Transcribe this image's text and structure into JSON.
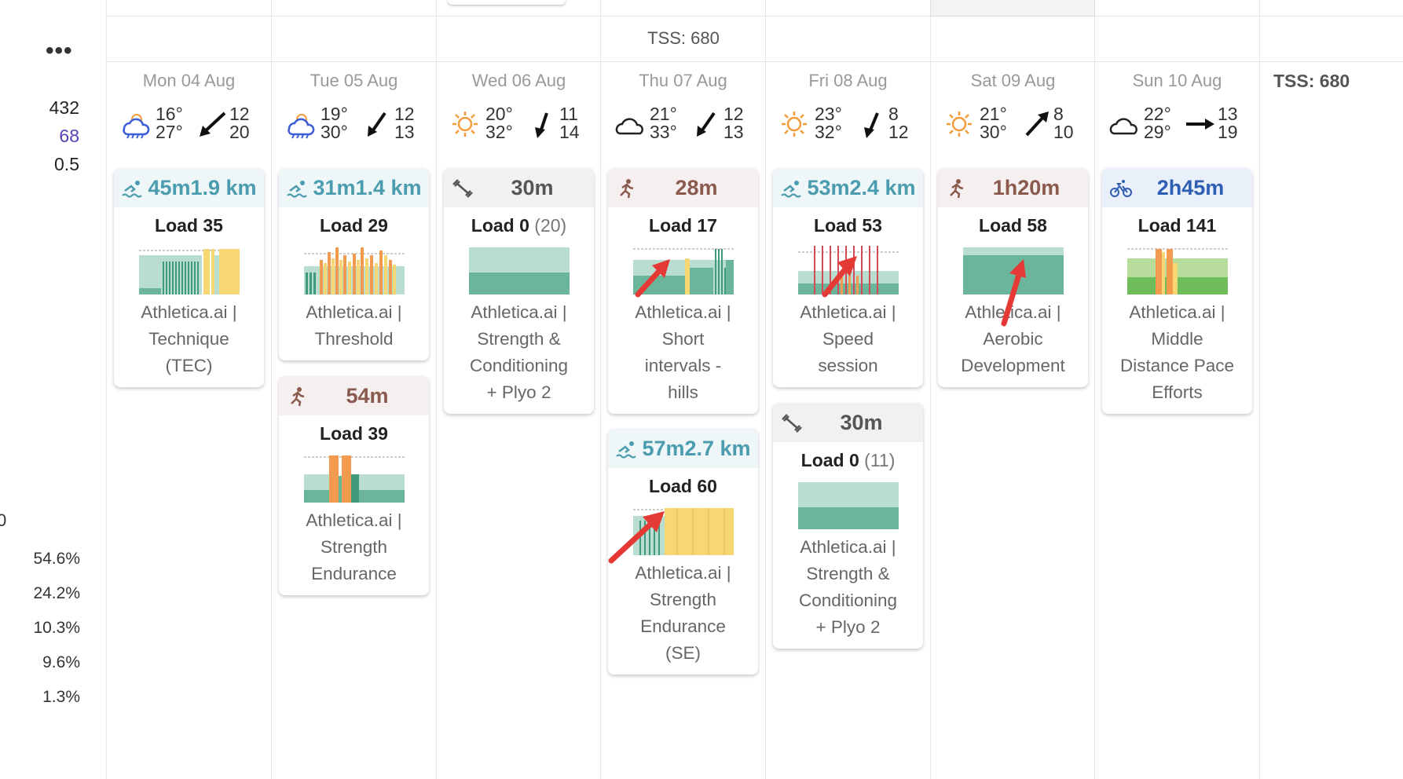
{
  "summary": {
    "tss_top": "TSS: 680",
    "tss_right": "TSS: 680",
    "more_label": "•••",
    "stats": [
      {
        "value": "432",
        "color": "#222222"
      },
      {
        "value": "68",
        "color": "#5b3fb5"
      },
      {
        "value": "0.5",
        "color": "#222222"
      }
    ],
    "cut_value": "0",
    "percentages": [
      "54.6%",
      "24.2%",
      "10.3%",
      "9.6%",
      "1.3%"
    ]
  },
  "days": [
    {
      "label": "Mon 04 Aug",
      "weather_icon": "rain-cloud-icon",
      "temp_low": "16°",
      "temp_high": "27°",
      "wind_dir": "south-west",
      "wind_a": "12",
      "wind_b": "20"
    },
    {
      "label": "Tue 05 Aug",
      "weather_icon": "rain-cloud-icon",
      "temp_low": "19°",
      "temp_high": "30°",
      "wind_dir": "south-west",
      "wind_a": "12",
      "wind_b": "13"
    },
    {
      "label": "Wed 06 Aug",
      "weather_icon": "sun-icon",
      "temp_low": "20°",
      "temp_high": "32°",
      "wind_dir": "south",
      "wind_a": "11",
      "wind_b": "14"
    },
    {
      "label": "Thu 07 Aug",
      "weather_icon": "cloud-icon",
      "temp_low": "21°",
      "temp_high": "33°",
      "wind_dir": "south-west",
      "wind_a": "12",
      "wind_b": "13"
    },
    {
      "label": "Fri 08 Aug",
      "weather_icon": "sun-icon",
      "temp_low": "23°",
      "temp_high": "32°",
      "wind_dir": "south",
      "wind_a": "8",
      "wind_b": "12"
    },
    {
      "label": "Sat 09 Aug",
      "weather_icon": "sun-icon",
      "temp_low": "21°",
      "temp_high": "30°",
      "wind_dir": "north-east",
      "wind_a": "8",
      "wind_b": "10"
    },
    {
      "label": "Sun 10 Aug",
      "weather_icon": "cloud-icon",
      "temp_low": "22°",
      "temp_high": "29°",
      "wind_dir": "east",
      "wind_a": "13",
      "wind_b": "19"
    }
  ],
  "workouts": {
    "mon_swim": {
      "sport_icon": "swim-icon",
      "duration": "45m",
      "distance": "1.9 km",
      "load": "Load 35",
      "load_paren": "",
      "name_lines": [
        "Athletica.ai |",
        "Technique",
        "(TEC)"
      ]
    },
    "tue_swim": {
      "sport_icon": "swim-icon",
      "duration": "31m",
      "distance": "1.4 km",
      "load": "Load 29",
      "load_paren": "",
      "name_lines": [
        "Athletica.ai |",
        "Threshold"
      ]
    },
    "tue_run": {
      "sport_icon": "run-icon",
      "duration": "54m",
      "distance": "",
      "load": "Load 39",
      "load_paren": "",
      "name_lines": [
        "Athletica.ai |",
        "Strength",
        "Endurance"
      ]
    },
    "wed_str": {
      "sport_icon": "dumbbell-icon",
      "duration": "30m",
      "distance": "",
      "load": "Load 0",
      "load_paren": "(20)",
      "name_lines": [
        "Athletica.ai |",
        "Strength &",
        "Conditioning",
        "+ Plyo 2"
      ]
    },
    "thu_run": {
      "sport_icon": "run-icon",
      "duration": "28m",
      "distance": "",
      "load": "Load 17",
      "load_paren": "",
      "name_lines": [
        "Athletica.ai |",
        "Short",
        "intervals -",
        "hills"
      ]
    },
    "thu_swim": {
      "sport_icon": "swim-icon",
      "duration": "57m",
      "distance": "2.7 km",
      "load": "Load 60",
      "load_paren": "",
      "name_lines": [
        "Athletica.ai |",
        "Strength",
        "Endurance",
        "(SE)"
      ]
    },
    "fri_swim": {
      "sport_icon": "swim-icon",
      "duration": "53m",
      "distance": "2.4 km",
      "load": "Load 53",
      "load_paren": "",
      "name_lines": [
        "Athletica.ai |",
        "Speed",
        "session"
      ]
    },
    "fri_str": {
      "sport_icon": "dumbbell-icon",
      "duration": "30m",
      "distance": "",
      "load": "Load 0",
      "load_paren": "(11)",
      "name_lines": [
        "Athletica.ai |",
        "Strength &",
        "Conditioning",
        "+ Plyo 2"
      ]
    },
    "sat_run": {
      "sport_icon": "run-icon",
      "duration": "1h20m",
      "distance": "",
      "load": "Load 58",
      "load_paren": "",
      "name_lines": [
        "Athletica.ai |",
        "Aerobic",
        "Development"
      ]
    },
    "sun_bike": {
      "sport_icon": "bike-icon",
      "duration": "2h45m",
      "distance": "",
      "load": "Load 141",
      "load_paren": "",
      "name_lines": [
        "Athletica.ai |",
        "Middle",
        "Distance Pace",
        "Efforts"
      ]
    }
  },
  "colors": {
    "annotation_arrow": "#e53935",
    "zone_green": "#6bb59a",
    "zone_yellow": "#f7d774",
    "zone_orange": "#f29a4e",
    "zone_red": "#d44a5a"
  }
}
